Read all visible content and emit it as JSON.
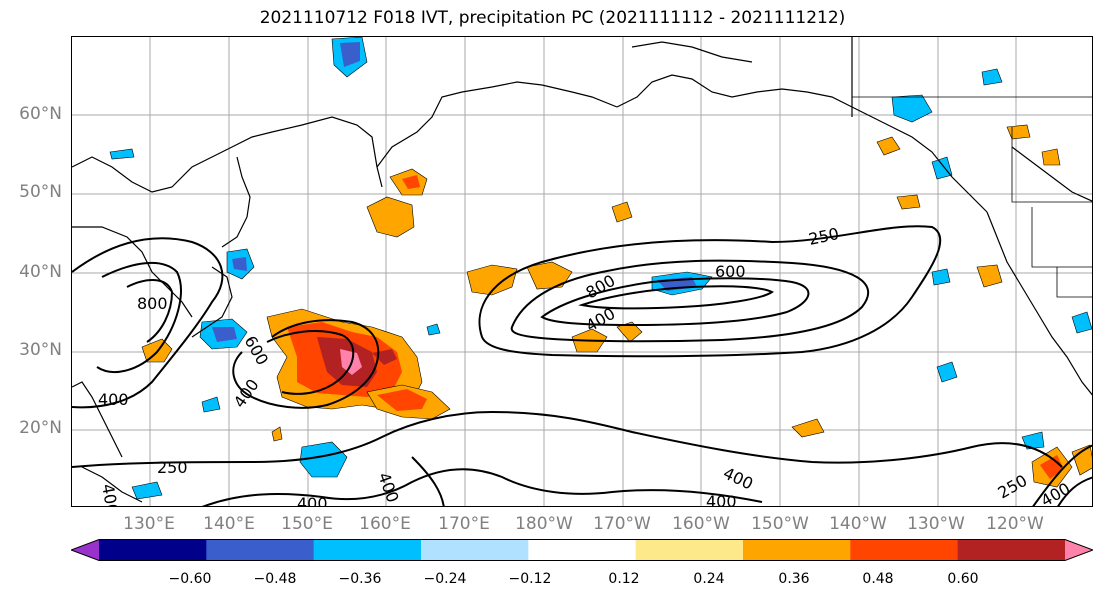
{
  "title": "2021110712 F018 IVT, precipitation PC (2021111112 - 2021111212)",
  "lat_labels": [
    "60°N",
    "50°N",
    "40°N",
    "30°N",
    "20°N"
  ],
  "lon_labels": [
    "130°E",
    "140°E",
    "150°E",
    "160°E",
    "170°E",
    "180°W",
    "170°W",
    "160°W",
    "150°W",
    "140°W",
    "130°W",
    "120°W"
  ],
  "contour_labels": {
    "c250_east": "250",
    "c600_mid": "600",
    "c800_mid": "800",
    "c400_mid": "400",
    "c800_west": "800",
    "c400_west": "400",
    "c600_japan": "600",
    "c400_japan": "400",
    "c250_sw": "250",
    "c400_sw": "400",
    "c400_south": "400",
    "c400_s2": "400",
    "c400_se": "400",
    "c400_se2": "400",
    "c250_se": "250",
    "c400_far": "400"
  },
  "colorbar": {
    "ticks": [
      "−0.60",
      "−0.48",
      "−0.36",
      "−0.24",
      "−0.12",
      "0.12",
      "0.24",
      "0.36",
      "0.48",
      "0.60"
    ],
    "colors": [
      "#9932cc",
      "#00008b",
      "#3a5fcd",
      "#00bfff",
      "#b0e2ff",
      "#ffffff",
      "#fde98a",
      "#ffa500",
      "#ff4500",
      "#b22222",
      "#ff82ab"
    ]
  }
}
